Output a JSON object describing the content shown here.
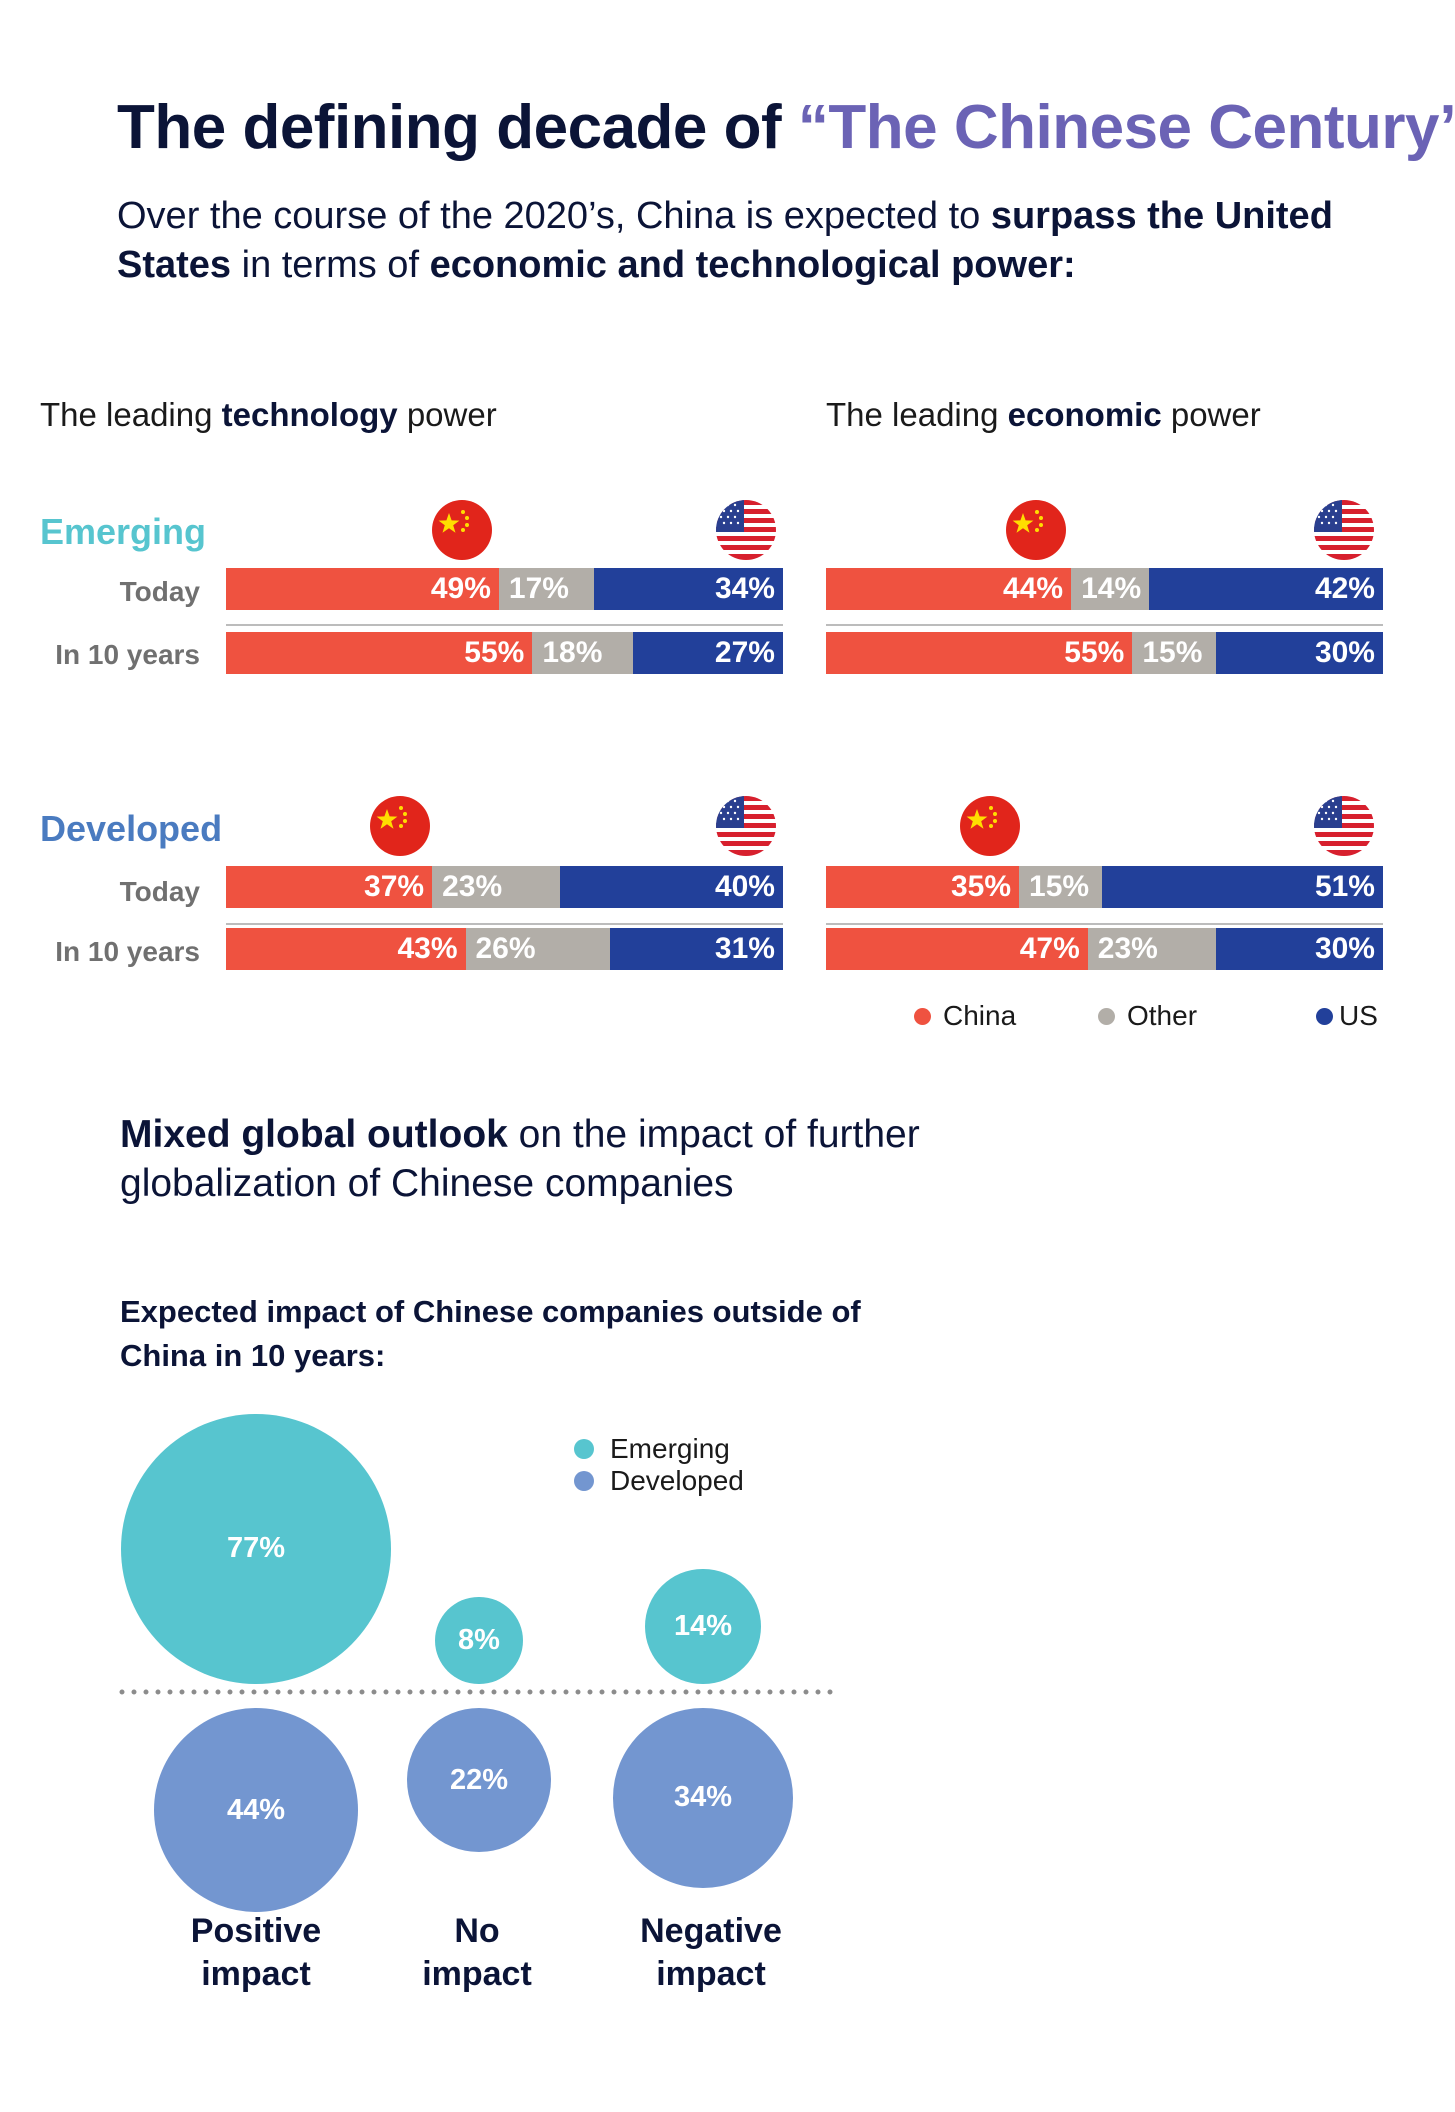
{
  "header": {
    "title_main": "The defining decade of ",
    "title_accent": "“The Chinese Century”",
    "subtitle": [
      {
        "text": "Over the course of the 2020’s, China is expected to ",
        "bold": false
      },
      {
        "text": "surpass the United States",
        "bold": true
      },
      {
        "text": " in terms of ",
        "bold": false
      },
      {
        "text": "economic and technological power:",
        "bold": true
      }
    ]
  },
  "colors": {
    "china": "#ef5240",
    "other": "#b2aea8",
    "us": "#22409a",
    "emerging": "#57c5cf",
    "developed": "#7396d0",
    "accent": "#6b63b5"
  },
  "sections": {
    "technology": {
      "pre": "The leading ",
      "bold": "technology",
      "post": " power"
    },
    "economic": {
      "pre": "The leading ",
      "bold": "economic",
      "post": " power"
    }
  },
  "groups": {
    "emerging": "Emerging",
    "developed": "Developed"
  },
  "row_labels": {
    "today": "Today",
    "ten_years": "In 10 years"
  },
  "chart_data": [
    {
      "type": "bar",
      "title": "The leading technology power",
      "stacked": true,
      "series_names": [
        "China",
        "Other",
        "US"
      ],
      "rows": [
        {
          "group": "Emerging",
          "label": "Today",
          "values": [
            49,
            17,
            34
          ],
          "labels": [
            "49%",
            "17%",
            "34%"
          ]
        },
        {
          "group": "Emerging",
          "label": "In 10 years",
          "values": [
            55,
            18,
            27
          ],
          "labels": [
            "55%",
            "18%",
            "27%"
          ]
        },
        {
          "group": "Developed",
          "label": "Today",
          "values": [
            37,
            23,
            40
          ],
          "labels": [
            "37%",
            "23%",
            "40%"
          ]
        },
        {
          "group": "Developed",
          "label": "In 10 years",
          "values": [
            43,
            26,
            31
          ],
          "labels": [
            "43%",
            "26%",
            "31%"
          ]
        }
      ]
    },
    {
      "type": "bar",
      "title": "The leading economic power",
      "stacked": true,
      "series_names": [
        "China",
        "Other",
        "US"
      ],
      "rows": [
        {
          "group": "Emerging",
          "label": "Today",
          "values": [
            44,
            14,
            42
          ],
          "labels": [
            "44%",
            "14%",
            "42%"
          ]
        },
        {
          "group": "Emerging",
          "label": "In 10 years",
          "values": [
            55,
            15,
            30
          ],
          "labels": [
            "55%",
            "15%",
            "30%"
          ]
        },
        {
          "group": "Developed",
          "label": "Today",
          "values": [
            35,
            15,
            51
          ],
          "labels": [
            "35%",
            "15%",
            "51%"
          ]
        },
        {
          "group": "Developed",
          "label": "In 10 years",
          "values": [
            47,
            23,
            30
          ],
          "labels": [
            "47%",
            "23%",
            "30%"
          ]
        }
      ]
    },
    {
      "type": "scatter",
      "title": "Expected impact of Chinese companies outside of China in 10 years:",
      "categories": [
        "Positive impact",
        "No impact",
        "Negative impact"
      ],
      "series": [
        {
          "name": "Emerging",
          "values": [
            77,
            8,
            14
          ],
          "labels": [
            "77%",
            "8%",
            "14%"
          ]
        },
        {
          "name": "Developed",
          "values": [
            44,
            22,
            34
          ],
          "labels": [
            "44%",
            "22%",
            "34%"
          ]
        }
      ]
    }
  ],
  "bar_legend": [
    "China",
    "Other",
    "US"
  ],
  "outlook": {
    "bold": "Mixed global outlook",
    "rest": " on the impact of further globalization of Chinese companies"
  },
  "impact": {
    "title": "Expected impact of Chinese companies outside of China in 10 years:",
    "legend": [
      "Emerging",
      "Developed"
    ],
    "categories": [
      {
        "line1": "Positive",
        "line2": "impact"
      },
      {
        "line1": "No",
        "line2": "impact"
      },
      {
        "line1": "Negative",
        "line2": "impact"
      }
    ]
  }
}
